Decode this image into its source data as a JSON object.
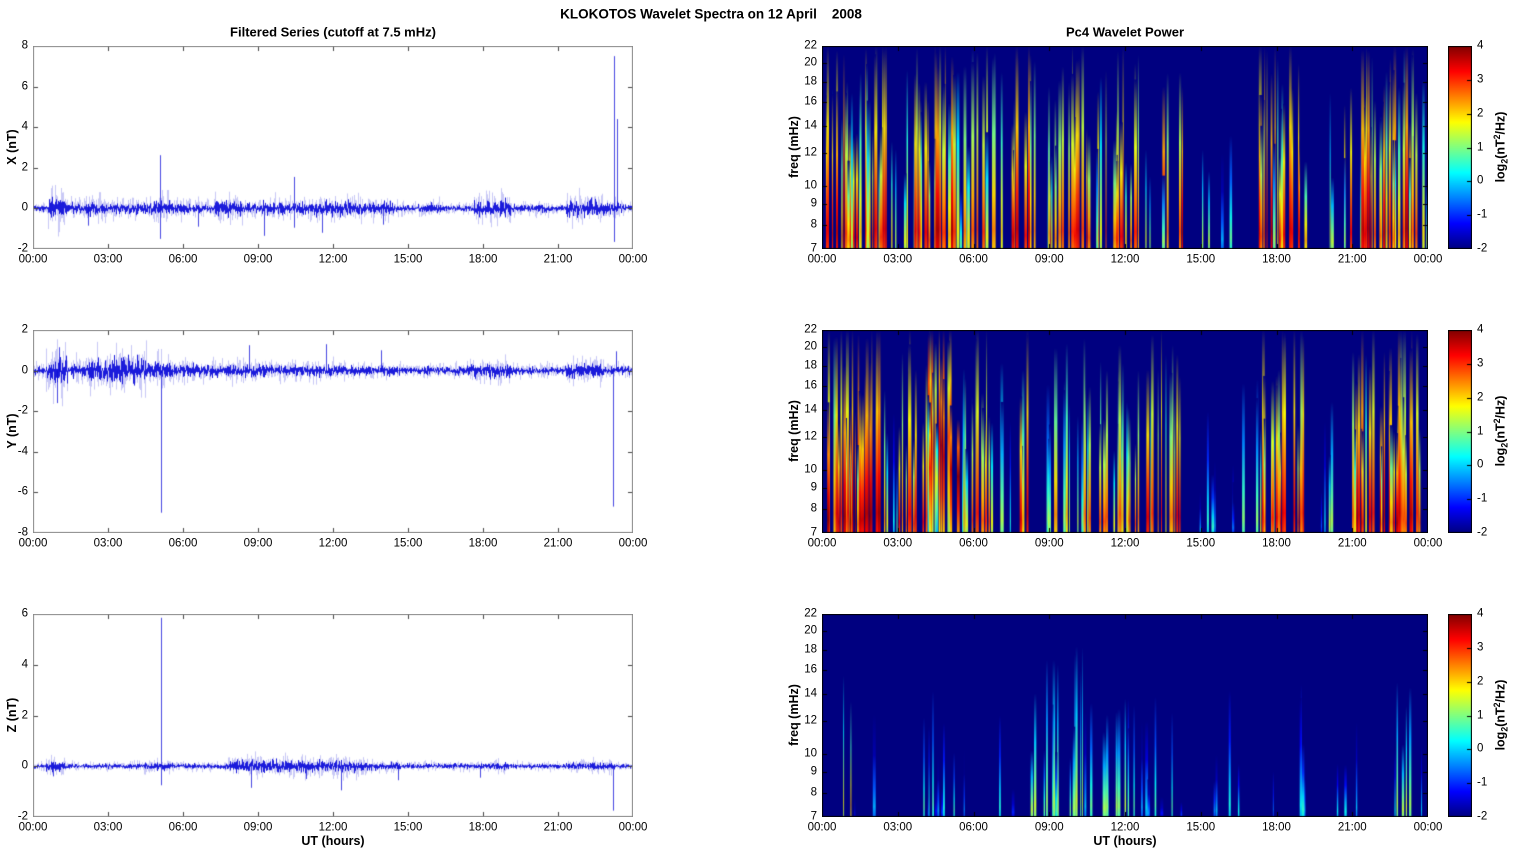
{
  "figure": {
    "title": "KLOKOTOS Wavelet Spectra on 12 April    2008"
  },
  "time_axis": {
    "label": "UT (hours)",
    "tick_labels": [
      "00:00",
      "03:00",
      "06:00",
      "09:00",
      "12:00",
      "15:00",
      "18:00",
      "21:00",
      "00:00"
    ],
    "hours": [
      0,
      3,
      6,
      9,
      12,
      15,
      18,
      21,
      24
    ]
  },
  "left_column": {
    "title": "Filtered Series (cutoff at 7.5 mHz)",
    "line_color": "#0b0bd8"
  },
  "right_column": {
    "title": "Pc4 Wavelet Power",
    "freq_label": "freq (mHz)",
    "freq_ticks": [
      22,
      20,
      18,
      16,
      14,
      12,
      10,
      9,
      8,
      7
    ],
    "freq_range": [
      7,
      22
    ],
    "colorbar": {
      "ticks": [
        4,
        3,
        2,
        1,
        0,
        -1,
        -2
      ],
      "range": [
        -2,
        4
      ],
      "label_parts": {
        "prefix": "log",
        "sub": "2",
        "open": "(nT",
        "sup": "2",
        "close": "/Hz)"
      }
    }
  },
  "chart_data": [
    {
      "type": "line",
      "name": "X filtered series",
      "ylabel": "X (nT)",
      "ylim": [
        -2,
        8
      ],
      "yticks": [
        8,
        6,
        4,
        2,
        0,
        -2
      ],
      "x_range_hours": [
        0,
        24
      ],
      "noise_base": 0.07,
      "noise_envelope": [
        [
          0.55,
          1.35,
          0.26
        ],
        [
          1.35,
          2.1,
          0.12
        ],
        [
          2.1,
          3.3,
          0.15
        ],
        [
          3.3,
          4.5,
          0.13
        ],
        [
          4.5,
          5.5,
          0.17
        ],
        [
          5.5,
          6.3,
          0.13
        ],
        [
          6.4,
          7.1,
          0.11
        ],
        [
          7.2,
          8.4,
          0.17
        ],
        [
          8.4,
          9.1,
          0.11
        ],
        [
          9.1,
          9.7,
          0.15
        ],
        [
          9.8,
          10.9,
          0.15
        ],
        [
          11.0,
          13.3,
          0.16
        ],
        [
          13.4,
          14.4,
          0.14
        ],
        [
          14.5,
          15.3,
          0.09
        ],
        [
          15.4,
          16.3,
          0.11
        ],
        [
          17.6,
          19.1,
          0.19
        ],
        [
          19.1,
          20.6,
          0.09
        ],
        [
          21.3,
          22.8,
          0.19
        ],
        [
          22.8,
          23.6,
          0.13
        ]
      ],
      "spikes": [
        [
          5.08,
          2.62
        ],
        [
          5.08,
          -1.5
        ],
        [
          2.2,
          -0.85
        ],
        [
          6.6,
          -0.9
        ],
        [
          9.25,
          -1.35
        ],
        [
          10.45,
          1.55
        ],
        [
          10.45,
          -0.95
        ],
        [
          11.55,
          -1.2
        ],
        [
          14.0,
          -0.8
        ],
        [
          23.22,
          7.5
        ],
        [
          23.35,
          4.4
        ],
        [
          23.22,
          -1.65
        ]
      ]
    },
    {
      "type": "line",
      "name": "Y filtered series",
      "ylabel": "Y (nT)",
      "ylim": [
        -8,
        2
      ],
      "yticks": [
        2,
        0,
        -2,
        -4,
        -6,
        -8
      ],
      "x_range_hours": [
        0,
        24
      ],
      "noise_base": 0.09,
      "noise_envelope": [
        [
          0.5,
          1.4,
          0.33
        ],
        [
          1.5,
          2.2,
          0.17
        ],
        [
          2.2,
          4.6,
          0.28
        ],
        [
          4.6,
          5.6,
          0.2
        ],
        [
          5.6,
          6.6,
          0.16
        ],
        [
          6.6,
          7.7,
          0.13
        ],
        [
          7.7,
          9.0,
          0.15
        ],
        [
          9.0,
          12.6,
          0.13
        ],
        [
          12.7,
          14.3,
          0.11
        ],
        [
          14.4,
          16.1,
          0.07
        ],
        [
          16.1,
          17.3,
          0.09
        ],
        [
          17.4,
          19.1,
          0.16
        ],
        [
          19.1,
          21.2,
          0.07
        ],
        [
          21.3,
          22.8,
          0.17
        ],
        [
          22.8,
          24,
          0.09
        ]
      ],
      "spikes": [
        [
          0.95,
          -1.6
        ],
        [
          1.05,
          1.15
        ],
        [
          5.1,
          -7.0
        ],
        [
          8.65,
          1.25
        ],
        [
          11.7,
          1.3
        ],
        [
          13.9,
          1.0
        ],
        [
          23.2,
          -6.7
        ],
        [
          23.3,
          0.95
        ]
      ]
    },
    {
      "type": "line",
      "name": "Z filtered series",
      "ylabel": "Z (nT)",
      "ylim": [
        -2,
        6
      ],
      "yticks": [
        6,
        4,
        2,
        0,
        -2
      ],
      "x_range_hours": [
        0,
        24
      ],
      "noise_base": 0.045,
      "noise_envelope": [
        [
          0.5,
          1.3,
          0.09
        ],
        [
          4.4,
          5.6,
          0.07
        ],
        [
          7.8,
          13.2,
          0.11
        ],
        [
          13.2,
          14.6,
          0.07
        ],
        [
          17.6,
          19.0,
          0.06
        ],
        [
          21.4,
          23.2,
          0.07
        ]
      ],
      "spikes": [
        [
          0.8,
          -0.4
        ],
        [
          5.1,
          5.85
        ],
        [
          5.1,
          -0.75
        ],
        [
          8.7,
          -0.85
        ],
        [
          10.9,
          -0.5
        ],
        [
          12.3,
          -0.95
        ],
        [
          14.6,
          -0.55
        ],
        [
          17.9,
          -0.45
        ],
        [
          23.2,
          -1.75
        ]
      ]
    },
    {
      "type": "heatmap",
      "name": "X component Pc4 wavelet power",
      "ylabel": "freq (mHz)",
      "yscale": "log",
      "ylim": [
        7,
        22
      ],
      "value_label": "log2(nT^2/Hz)",
      "value_range": [
        -2,
        4
      ],
      "background_value": -2,
      "activity_segments": [
        [
          0.2,
          1.0,
          14,
          4
        ],
        [
          1.0,
          2.8,
          12,
          3.5
        ],
        [
          2.9,
          3.4,
          6,
          2
        ],
        [
          3.5,
          5.2,
          12,
          3.8
        ],
        [
          5.2,
          6.6,
          10,
          3
        ],
        [
          6.7,
          7.3,
          6,
          2.5
        ],
        [
          7.5,
          8.6,
          10,
          3.8
        ],
        [
          8.6,
          9.8,
          8,
          3
        ],
        [
          9.9,
          11.2,
          9,
          3.5
        ],
        [
          11.2,
          12.6,
          10,
          3.5
        ],
        [
          12.8,
          13.3,
          4,
          2
        ],
        [
          13.5,
          14.3,
          8,
          3.8
        ],
        [
          14.8,
          15.4,
          3,
          2.5
        ],
        [
          15.8,
          16.6,
          3,
          1.5
        ],
        [
          17.3,
          19.2,
          10,
          3.8
        ],
        [
          19.5,
          20.3,
          3,
          1.5
        ],
        [
          20.7,
          23.6,
          12,
          3.8
        ],
        [
          23.6,
          24,
          4,
          2
        ]
      ]
    },
    {
      "type": "heatmap",
      "name": "Y component Pc4 wavelet power",
      "ylabel": "freq (mHz)",
      "yscale": "log",
      "ylim": [
        7,
        22
      ],
      "value_label": "log2(nT^2/Hz)",
      "value_range": [
        -2,
        4
      ],
      "background_value": -2,
      "activity_segments": [
        [
          0.2,
          2.3,
          14,
          4
        ],
        [
          2.4,
          3.0,
          6,
          2.5
        ],
        [
          3.0,
          4.2,
          12,
          3.5
        ],
        [
          4.2,
          5.5,
          14,
          4,
          "mid"
        ],
        [
          5.5,
          6.9,
          10,
          3.2
        ],
        [
          7.0,
          7.6,
          5,
          2
        ],
        [
          7.8,
          8.4,
          8,
          3.5
        ],
        [
          8.6,
          9.4,
          6,
          2.5
        ],
        [
          9.5,
          12.6,
          9,
          3
        ],
        [
          12.8,
          14.3,
          8,
          3.5
        ],
        [
          14.6,
          16.8,
          3,
          1.2
        ],
        [
          17.2,
          19.3,
          10,
          3.5
        ],
        [
          19.5,
          20.8,
          3,
          1.5
        ],
        [
          21.0,
          23.7,
          12,
          3.8
        ]
      ]
    },
    {
      "type": "heatmap",
      "name": "Z component Pc4 wavelet power",
      "ylabel": "freq (mHz)",
      "yscale": "log",
      "ylim": [
        7,
        22
      ],
      "value_label": "log2(nT^2/Hz)",
      "value_range": [
        -2,
        4
      ],
      "background_value": -2,
      "activity_segments": [
        [
          0.8,
          1.2,
          4,
          2.2
        ],
        [
          1.3,
          2.2,
          2,
          0.5
        ],
        [
          3.8,
          6.2,
          5,
          0.8
        ],
        [
          7.0,
          7.8,
          2,
          0.5
        ],
        [
          8.2,
          12.4,
          7,
          1.5
        ],
        [
          12.6,
          14.6,
          4,
          0.8
        ],
        [
          15.0,
          17.0,
          2,
          0.4
        ],
        [
          17.5,
          19.2,
          3,
          0.6
        ],
        [
          20.0,
          21.5,
          2,
          0.4
        ],
        [
          22.3,
          23.3,
          5,
          1.6
        ],
        [
          23.5,
          24,
          2,
          0.8
        ]
      ]
    }
  ]
}
